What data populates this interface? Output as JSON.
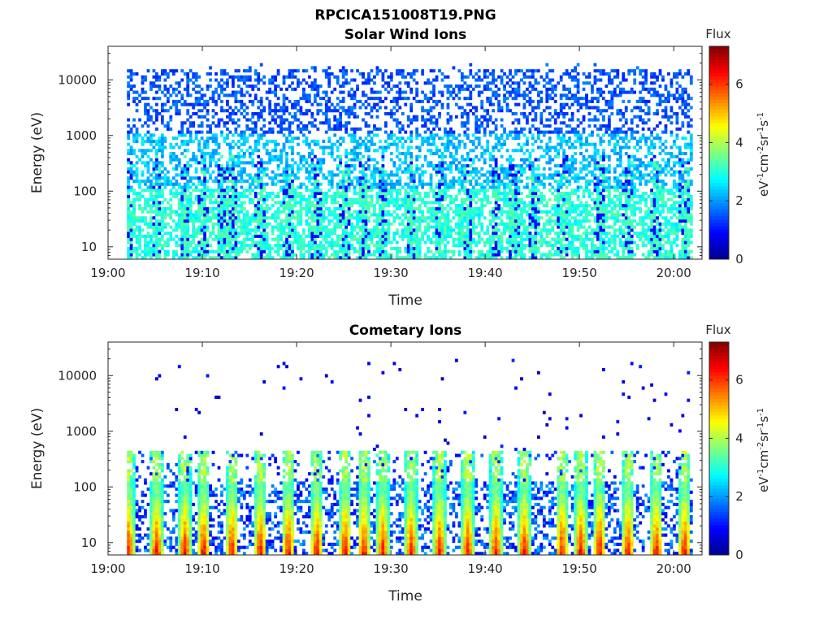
{
  "figure_title": "RPCICA151008T19.PNG",
  "colormap": [
    "#00008f",
    "#0000ff",
    "#0080ff",
    "#00ffff",
    "#80ff80",
    "#ffff00",
    "#ff8000",
    "#ff0000",
    "#800000"
  ],
  "chart_data": [
    {
      "type": "heatmap",
      "title": "Solar Wind Ions",
      "xlabel": "Time",
      "ylabel": "Energy (eV)",
      "x_ticks": [
        "19:00",
        "19:10",
        "19:20",
        "19:30",
        "19:40",
        "19:50",
        "20:00"
      ],
      "xlim": [
        "19:00",
        "20:03"
      ],
      "data_x_range": [
        "19:02",
        "20:02"
      ],
      "y_scale": "log",
      "y_ticks": [
        "10",
        "100",
        "1000",
        "10000"
      ],
      "ylim": [
        6,
        40000
      ],
      "colorbar": {
        "label": "Flux",
        "units": "eV-1cm-2sr-1s-1",
        "ticks": [
          "0",
          "2",
          "4",
          "6"
        ],
        "range": [
          0,
          7.3
        ]
      },
      "description_levels": {
        "above_1000_eV": 1.5,
        "100_to_1000_eV": 2.3,
        "below_100_eV": 3.0,
        "pulse_peak_level": 3.3
      },
      "pulse_times": [
        "19:02",
        "19:05",
        "19:08",
        "19:10",
        "19:12",
        "19:13",
        "19:16",
        "19:19",
        "19:22",
        "19:25",
        "19:27",
        "19:29",
        "19:32",
        "19:35",
        "19:38",
        "19:41",
        "19:43",
        "19:45",
        "19:48",
        "19:52",
        "19:55",
        "19:58",
        "20:01"
      ]
    },
    {
      "type": "heatmap",
      "title": "Cometary Ions",
      "xlabel": "Time",
      "ylabel": "Energy (eV)",
      "x_ticks": [
        "19:00",
        "19:10",
        "19:20",
        "19:30",
        "19:40",
        "19:50",
        "20:00"
      ],
      "xlim": [
        "19:00",
        "20:03"
      ],
      "data_x_range": [
        "19:02",
        "20:02"
      ],
      "y_scale": "log",
      "y_ticks": [
        "10",
        "100",
        "1000",
        "10000"
      ],
      "ylim": [
        6,
        40000
      ],
      "colorbar": {
        "label": "Flux",
        "units": "eV-1cm-2sr-1s-1",
        "ticks": [
          "0",
          "2",
          "4",
          "6"
        ],
        "range": [
          0,
          7.3
        ]
      },
      "description_levels": {
        "background_below_120_eV": 1.5,
        "sparse_above_200_eV": 0.8,
        "pulse_peak_level": 6.3
      },
      "pulse_times": [
        "19:02",
        "19:05",
        "19:08",
        "19:10",
        "19:13",
        "19:16",
        "19:19",
        "19:22",
        "19:25",
        "19:27",
        "19:29",
        "19:32",
        "19:35",
        "19:38",
        "19:41",
        "19:44",
        "19:48",
        "19:50",
        "19:52",
        "19:55",
        "19:58",
        "20:01"
      ]
    }
  ]
}
